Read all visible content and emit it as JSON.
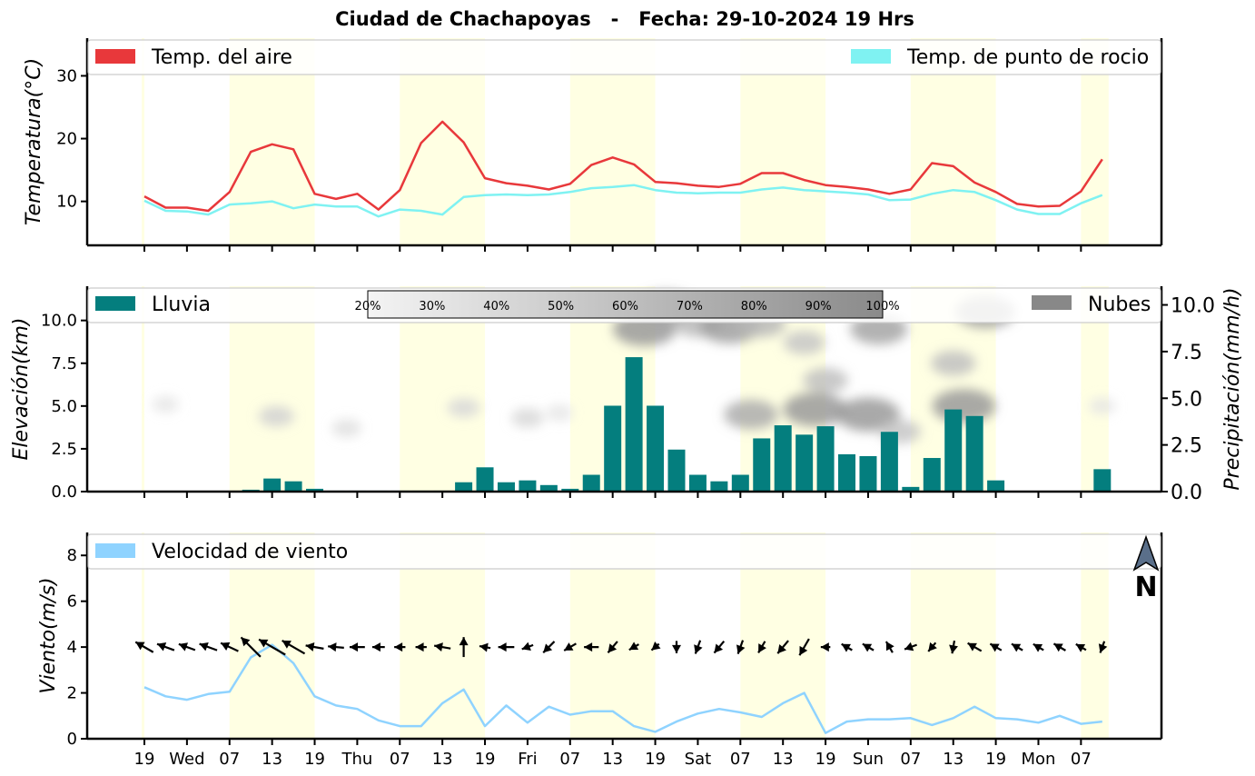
{
  "title": "Ciudad de Chachapoyas   -   Fecha: 29-10-2024 19 Hrs",
  "x_tick_labels": [
    "19",
    "Wed",
    "07",
    "13",
    "19",
    "Thu",
    "07",
    "13",
    "19",
    "Fri",
    "07",
    "13",
    "19",
    "Sat",
    "07",
    "13",
    "19",
    "Sun",
    "07",
    "13",
    "19",
    "Mon",
    "07"
  ],
  "colors": {
    "air_temp": "#e8383b",
    "dew_point": "#7ff2f2",
    "rain": "#047e7e",
    "clouds": "#888888",
    "wind_speed": "#8fd3ff",
    "day_shading": "#ffffe3",
    "arrow": "#000000"
  },
  "chart_data": [
    {
      "type": "line",
      "ylabel": "Temperatura(°C)",
      "ylim": [
        3,
        36
      ],
      "yticks": [
        "10",
        "20",
        "30"
      ],
      "legend_placement": "top",
      "x_step_hours": 3,
      "series": [
        {
          "name": "Temp. del aire",
          "color": "#e8383b",
          "values": [
            10.8,
            9.0,
            9.0,
            8.5,
            11.5,
            17.9,
            19.1,
            18.3,
            11.2,
            10.4,
            11.2,
            8.7,
            11.8,
            19.3,
            22.7,
            19.4,
            13.7,
            12.9,
            12.5,
            11.9,
            12.8,
            15.8,
            17.0,
            15.9,
            13.1,
            12.9,
            12.5,
            12.3,
            12.8,
            14.5,
            14.5,
            13.4,
            12.6,
            12.3,
            11.9,
            11.2,
            11.9,
            16.1,
            15.6,
            13.0,
            11.5,
            9.6,
            9.2,
            9.3,
            11.6,
            16.7
          ]
        },
        {
          "name": "Temp. de punto de rocio",
          "color": "#7ff2f2",
          "values": [
            10.1,
            8.5,
            8.4,
            7.9,
            9.5,
            9.7,
            10.0,
            8.9,
            9.5,
            9.2,
            9.2,
            7.6,
            8.7,
            8.5,
            7.9,
            10.7,
            11.0,
            11.1,
            11.0,
            11.1,
            11.5,
            12.1,
            12.3,
            12.6,
            11.8,
            11.4,
            11.3,
            11.4,
            11.4,
            11.9,
            12.2,
            11.8,
            11.6,
            11.4,
            11.1,
            10.2,
            10.3,
            11.2,
            11.8,
            11.5,
            10.2,
            8.7,
            8.0,
            8.0,
            9.7,
            11.0
          ]
        }
      ]
    },
    {
      "type": "bar",
      "ylabel": "Elevación(km)",
      "ylim": [
        0,
        12
      ],
      "yticks": [
        "0.0",
        "2.5",
        "5.0",
        "7.5",
        "10.0"
      ],
      "y2label": "Precipitación(mm/h)",
      "y2lim": [
        0,
        11
      ],
      "y2ticks": [
        "0.0",
        "2.5",
        "5.0",
        "7.5",
        "10.0"
      ],
      "legend": [
        {
          "name": "Lluvia",
          "color": "#047e7e"
        },
        {
          "name": "Nubes",
          "color": "#888888"
        }
      ],
      "series": [
        {
          "name": "Lluvia",
          "values": [
            0,
            0,
            0,
            0,
            0,
            0.1,
            0.7,
            0.55,
            0.15,
            0.05,
            0.05,
            0.05,
            0.05,
            0.05,
            0.05,
            0.5,
            1.3,
            0.5,
            0.6,
            0.35,
            0.15,
            0.9,
            4.6,
            7.2,
            4.6,
            2.25,
            0.9,
            0.55,
            0.9,
            2.85,
            3.55,
            3.05,
            3.5,
            2.0,
            1.9,
            3.2,
            0.25,
            1.8,
            4.4,
            4.05,
            0.6,
            0,
            0,
            0,
            0,
            1.2
          ]
        }
      ],
      "cloud_colorbar_labels": [
        "20%",
        "30%",
        "40%",
        "50%",
        "60%",
        "70%",
        "80%",
        "90%",
        "100%"
      ],
      "cloud_patches": [
        {
          "x": 1,
          "y": 5.1,
          "cover": 0.25
        },
        {
          "x": 6.2,
          "y": 4.4,
          "cover": 0.4
        },
        {
          "x": 9.5,
          "y": 3.7,
          "cover": 0.3
        },
        {
          "x": 15,
          "y": 4.9,
          "cover": 0.35
        },
        {
          "x": 18,
          "y": 4.3,
          "cover": 0.35
        },
        {
          "x": 19.5,
          "y": 4.6,
          "cover": 0.25
        },
        {
          "x": 23.5,
          "y": 9.5,
          "cover": 0.85
        },
        {
          "x": 24.5,
          "y": 10.8,
          "cover": 0.75
        },
        {
          "x": 26,
          "y": 9.8,
          "cover": 0.6
        },
        {
          "x": 27.5,
          "y": 9.6,
          "cover": 0.8
        },
        {
          "x": 29,
          "y": 9.8,
          "cover": 0.6
        },
        {
          "x": 28.5,
          "y": 4.5,
          "cover": 0.7
        },
        {
          "x": 31,
          "y": 8.7,
          "cover": 0.5
        },
        {
          "x": 32,
          "y": 6.5,
          "cover": 0.55
        },
        {
          "x": 31.5,
          "y": 4.8,
          "cover": 0.85
        },
        {
          "x": 34,
          "y": 4.5,
          "cover": 0.85
        },
        {
          "x": 34.5,
          "y": 9.5,
          "cover": 0.75
        },
        {
          "x": 35.5,
          "y": 3.5,
          "cover": 0.5
        },
        {
          "x": 38,
          "y": 7.5,
          "cover": 0.55
        },
        {
          "x": 38.5,
          "y": 5.0,
          "cover": 0.85
        },
        {
          "x": 39.5,
          "y": 10.5,
          "cover": 0.8
        },
        {
          "x": 45,
          "y": 5.0,
          "cover": 0.25
        }
      ]
    },
    {
      "type": "line",
      "ylabel": "Viento(m/s)",
      "ylim": [
        0,
        9
      ],
      "yticks": [
        "0",
        "2",
        "4",
        "6",
        "8"
      ],
      "legend_placement": "top-left",
      "north_arrow_label": "N",
      "series": [
        {
          "name": "Velocidad de viento",
          "color": "#8fd3ff",
          "values": [
            2.25,
            1.85,
            1.7,
            1.95,
            2.05,
            3.55,
            4.1,
            3.3,
            1.85,
            1.45,
            1.3,
            0.8,
            0.55,
            0.55,
            1.55,
            2.15,
            0.55,
            1.45,
            0.7,
            1.4,
            1.05,
            1.2,
            1.2,
            0.55,
            0.3,
            0.75,
            1.1,
            1.3,
            1.15,
            0.95,
            1.55,
            2.0,
            0.25,
            0.75,
            0.85,
            0.85,
            0.9,
            0.6,
            0.9,
            1.4,
            0.9,
            0.85,
            0.7,
            1.0,
            0.65,
            0.75
          ]
        }
      ],
      "wind_direction_deg": [
        300,
        290,
        290,
        290,
        295,
        315,
        300,
        300,
        280,
        275,
        270,
        270,
        270,
        270,
        280,
        0,
        280,
        270,
        250,
        225,
        240,
        270,
        220,
        240,
        230,
        180,
        200,
        220,
        200,
        210,
        220,
        210,
        270,
        300,
        300,
        330,
        250,
        220,
        190,
        300,
        300,
        300,
        300,
        300,
        300,
        200
      ]
    }
  ]
}
